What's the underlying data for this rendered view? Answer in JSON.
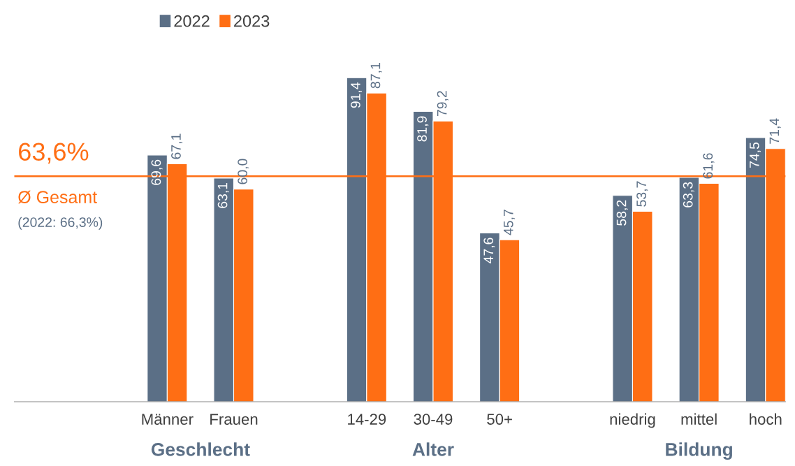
{
  "chart_data": {
    "type": "bar",
    "categories": [
      "Männer",
      "Frauen",
      null,
      "14-29",
      "30-49",
      "50+",
      null,
      "niedrig",
      "mittel",
      "hoch"
    ],
    "series": [
      {
        "name": "2022",
        "color": "#5b6f86",
        "values": [
          69.6,
          63.1,
          null,
          91.4,
          81.9,
          47.6,
          null,
          58.2,
          63.3,
          74.5
        ],
        "value_labels": [
          "69,6",
          "63,1",
          null,
          "91,4",
          "81,9",
          "47,6",
          null,
          "58,2",
          "63,3",
          "74,5"
        ]
      },
      {
        "name": "2023",
        "color": "#ff6e14",
        "values": [
          67.1,
          60.0,
          null,
          87.1,
          79.2,
          45.7,
          null,
          53.7,
          61.6,
          71.4
        ],
        "value_labels": [
          "67,1",
          "60,0",
          null,
          "87,1",
          "79,2",
          "45,7",
          null,
          "53,7",
          "61,6",
          "71,4"
        ]
      }
    ],
    "tick_labels": "x",
    "grid": false,
    "legend": "top left",
    "ref_lines": [
      {
        "axis": "y",
        "value": 63.6,
        "label": "63,6%",
        "color": "#ff6e14",
        "line_style": "solid"
      }
    ],
    "annotations": [
      "Ø Gesamt",
      "(2022: 66,3%)",
      "Geschlecht",
      "Alter",
      "Bildung"
    ]
  }
}
